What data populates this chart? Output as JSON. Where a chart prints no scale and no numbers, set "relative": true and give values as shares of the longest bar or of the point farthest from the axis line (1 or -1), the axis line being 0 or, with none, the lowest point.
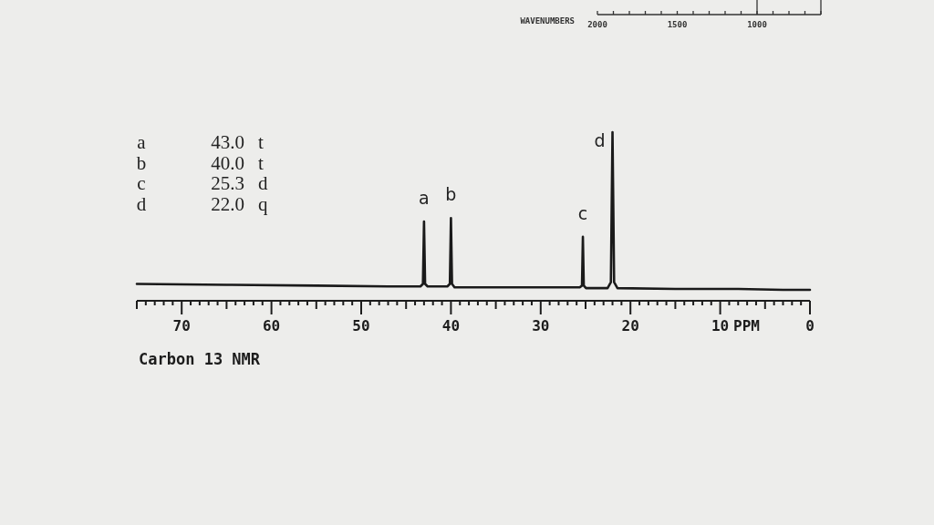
{
  "chart_data": [
    {
      "type": "other",
      "xlabel": "WAVENUMBERS",
      "annotations": [
        "2000",
        "1500",
        "1000"
      ]
    },
    {
      "type": "line",
      "title": "Carbon 13 NMR",
      "xlabel": "PPM",
      "relative": true,
      "xlim": [
        75,
        0
      ],
      "xticks": [
        {
          "value": 75,
          "label": null
        },
        {
          "value": 74,
          "label": null
        },
        {
          "value": 73,
          "label": null
        },
        {
          "value": 72,
          "label": null
        },
        {
          "value": 71,
          "label": null
        },
        70,
        {
          "value": 69,
          "label": null
        },
        {
          "value": 68,
          "label": null
        },
        {
          "value": 67,
          "label": null
        },
        {
          "value": 66,
          "label": null
        },
        {
          "value": 65,
          "label": null
        },
        {
          "value": 64,
          "label": null
        },
        {
          "value": 63,
          "label": null
        },
        {
          "value": 62,
          "label": null
        },
        {
          "value": 61,
          "label": null
        },
        60,
        {
          "value": 59,
          "label": null
        },
        {
          "value": 58,
          "label": null
        },
        {
          "value": 57,
          "label": null
        },
        {
          "value": 56,
          "label": null
        },
        {
          "value": 55,
          "label": null
        },
        {
          "value": 54,
          "label": null
        },
        {
          "value": 53,
          "label": null
        },
        {
          "value": 52,
          "label": null
        },
        {
          "value": 51,
          "label": null
        },
        50,
        {
          "value": 49,
          "label": null
        },
        {
          "value": 48,
          "label": null
        },
        {
          "value": 47,
          "label": null
        },
        {
          "value": 46,
          "label": null
        },
        {
          "value": 45,
          "label": null
        },
        {
          "value": 44,
          "label": null
        },
        {
          "value": 43,
          "label": null
        },
        {
          "value": 42,
          "label": null
        },
        {
          "value": 41,
          "label": null
        },
        40,
        {
          "value": 39,
          "label": null
        },
        {
          "value": 38,
          "label": null
        },
        {
          "value": 37,
          "label": null
        },
        {
          "value": 36,
          "label": null
        },
        {
          "value": 35,
          "label": null
        },
        {
          "value": 34,
          "label": null
        },
        {
          "value": 33,
          "label": null
        },
        {
          "value": 32,
          "label": null
        },
        {
          "value": 31,
          "label": null
        },
        30,
        {
          "value": 29,
          "label": null
        },
        {
          "value": 28,
          "label": null
        },
        {
          "value": 27,
          "label": null
        },
        {
          "value": 26,
          "label": null
        },
        {
          "value": 25,
          "label": null
        },
        {
          "value": 24,
          "label": null
        },
        {
          "value": 23,
          "label": null
        },
        {
          "value": 22,
          "label": null
        },
        {
          "value": 21,
          "label": null
        },
        20,
        {
          "value": 19,
          "label": null
        },
        {
          "value": 18,
          "label": null
        },
        {
          "value": 17,
          "label": null
        },
        {
          "value": 16,
          "label": null
        },
        {
          "value": 15,
          "label": null
        },
        {
          "value": 14,
          "label": null
        },
        {
          "value": 13,
          "label": null
        },
        {
          "value": 12,
          "label": null
        },
        {
          "value": 11,
          "label": null
        },
        10,
        {
          "value": 9,
          "label": null
        },
        {
          "value": 8,
          "label": null
        },
        {
          "value": 7,
          "label": null
        },
        {
          "value": 6,
          "label": null
        },
        {
          "value": 5,
          "label": null
        },
        {
          "value": 4,
          "label": null
        },
        {
          "value": 3,
          "label": null
        },
        {
          "value": 2,
          "label": null
        },
        {
          "value": 1,
          "label": null
        },
        0
      ],
      "annotations": [
        "a 43.0 t",
        "b 40.0 t",
        "c 25.3 d",
        "d 22.0 q",
        {
          "text": "a",
          "x": 43.0,
          "y": 0.47
        },
        {
          "text": "b",
          "x": 40.0,
          "y": 0.49
        },
        {
          "text": "c",
          "x": 25.3,
          "y": 0.38
        },
        {
          "text": "d",
          "x": 22.0,
          "y": 1
        }
      ],
      "series": [
        {
          "color": "#1a1a1a",
          "x": [
            75,
            65,
            55,
            47,
            43.4,
            43.12,
            43.0,
            42.88,
            42.6,
            40.4,
            40.12,
            40.0,
            39.88,
            39.6,
            33,
            25.65,
            25.4,
            25.3,
            25.2,
            24.95,
            22.55,
            22.18,
            22.0,
            21.82,
            21.45,
            15,
            8,
            3,
            0
          ],
          "values": [
            0.1,
            0.095,
            0.09,
            0.085,
            0.085,
            0.1,
            0.47,
            0.1,
            0.085,
            0.085,
            0.1,
            0.49,
            0.1,
            0.08,
            0.08,
            0.08,
            0.09,
            0.38,
            0.09,
            0.075,
            0.075,
            0.11,
            1,
            0.11,
            0.075,
            0.07,
            0.07,
            0.065,
            0.065
          ]
        }
      ]
    }
  ]
}
